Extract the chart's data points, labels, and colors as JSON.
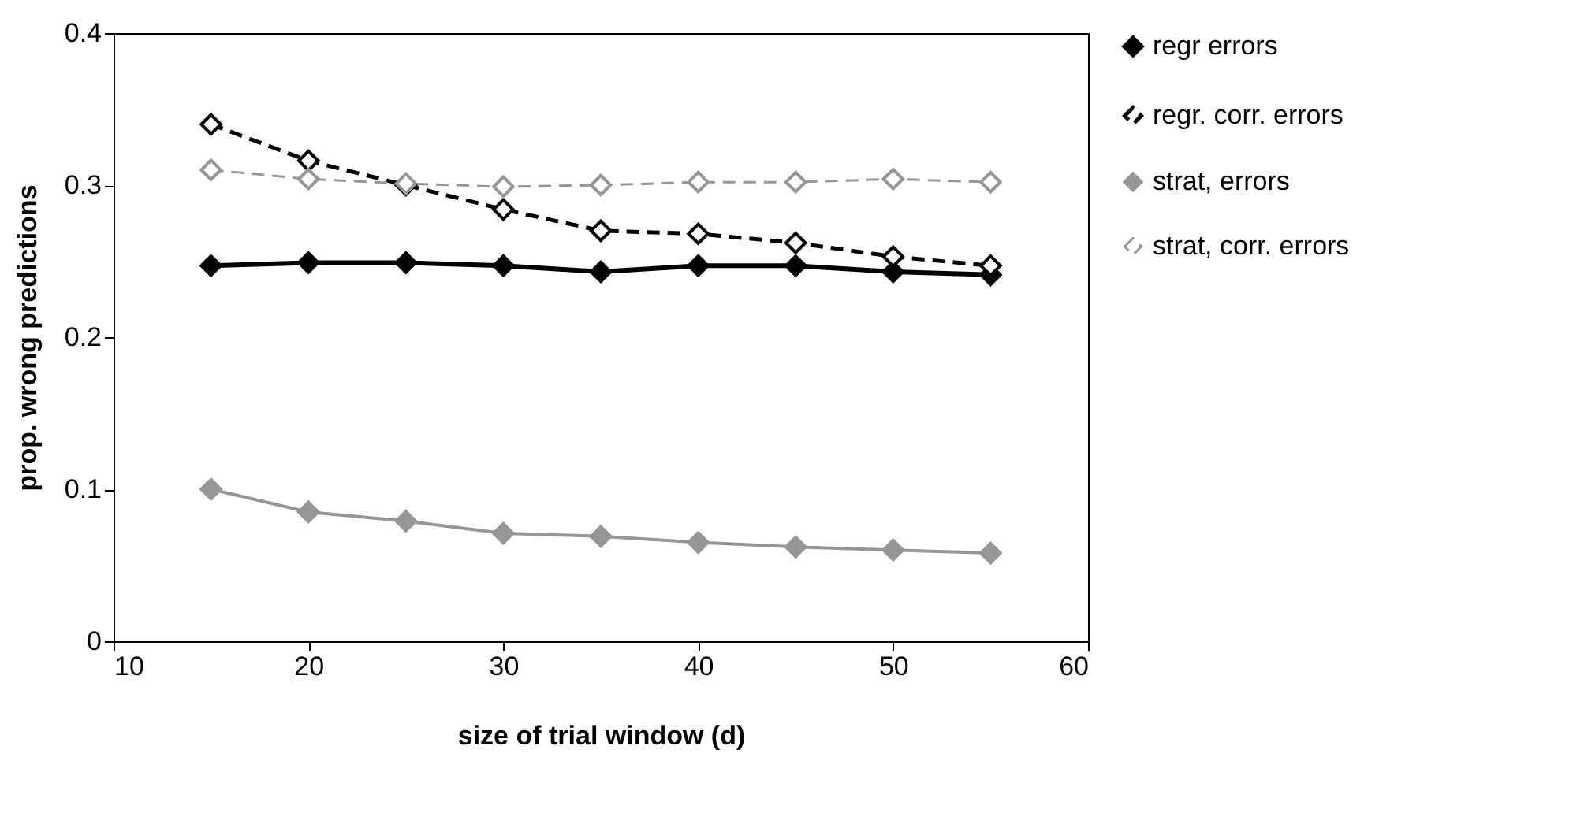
{
  "chart_data": {
    "type": "line",
    "xlabel": "size of trial window (d)",
    "ylabel": "prop. wrong predictions",
    "x": [
      15,
      20,
      25,
      30,
      35,
      40,
      45,
      50,
      55
    ],
    "series": [
      {
        "name": "regr errors",
        "color": "#000000",
        "line_style": "solid",
        "values": [
          0.247,
          0.249,
          0.249,
          0.247,
          0.243,
          0.247,
          0.247,
          0.243,
          0.241
        ]
      },
      {
        "name": "regr. corr. errors",
        "color": "#000000",
        "line_style": "dashed",
        "values": [
          0.34,
          0.316,
          0.3,
          0.284,
          0.27,
          0.268,
          0.262,
          0.253,
          0.247
        ]
      },
      {
        "name": "strat, errors",
        "color": "#969696",
        "line_style": "solid",
        "values": [
          0.1,
          0.085,
          0.079,
          0.071,
          0.069,
          0.065,
          0.062,
          0.06,
          0.058
        ]
      },
      {
        "name": "strat, corr. errors",
        "color": "#969696",
        "line_style": "dashed",
        "values": [
          0.31,
          0.304,
          0.301,
          0.299,
          0.3,
          0.302,
          0.302,
          0.304,
          0.302
        ]
      }
    ],
    "xlim": [
      10,
      60
    ],
    "xticks": [
      10,
      20,
      30,
      40,
      50,
      60
    ],
    "ylim": [
      0,
      0.4
    ],
    "yticks": [
      0,
      0.1,
      0.2,
      0.3,
      0.4
    ],
    "grid": false,
    "legend": "right",
    "marker": "diamond"
  }
}
